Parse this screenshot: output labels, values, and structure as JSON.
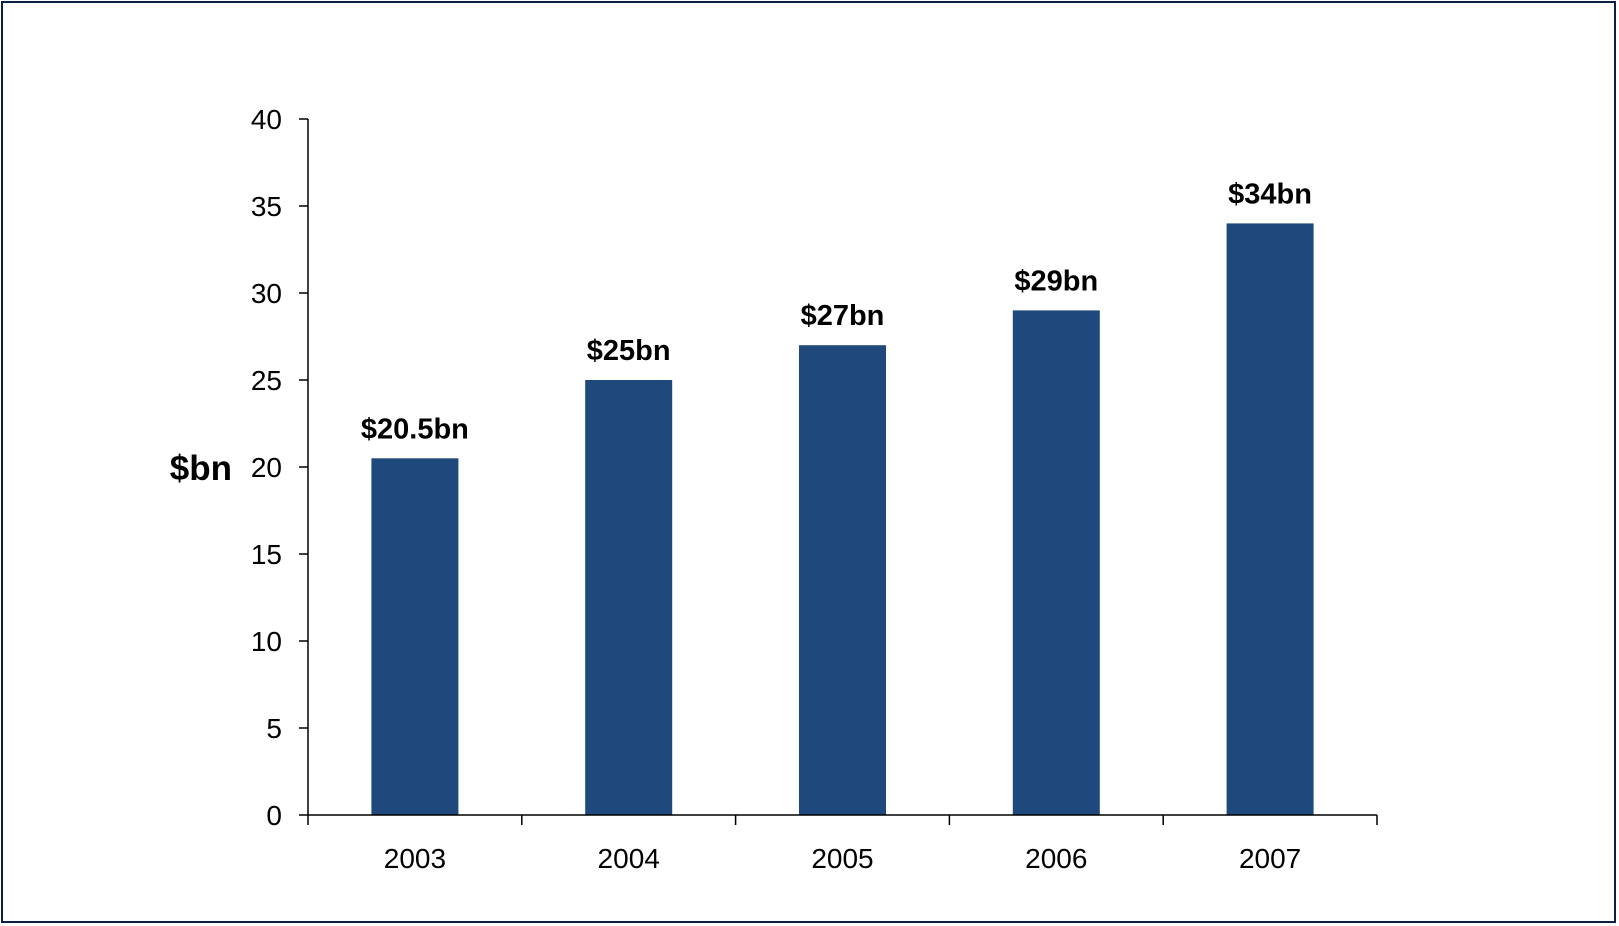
{
  "chart_data": {
    "type": "bar",
    "title": "",
    "xlabel": "",
    "ylabel": "$bn",
    "categories": [
      "2003",
      "2004",
      "2005",
      "2006",
      "2007"
    ],
    "values": [
      20.5,
      25,
      27,
      29,
      34
    ],
    "data_labels": [
      "$20.5bn",
      "$25bn",
      "$27bn",
      "$29bn",
      "$34bn"
    ],
    "ylim": [
      0,
      40
    ],
    "yticks": [
      0,
      5,
      10,
      15,
      20,
      25,
      30,
      35,
      40
    ],
    "grid": false,
    "legend": "none",
    "bar_color": "#1f497d",
    "frame_color": "#0a2240"
  }
}
